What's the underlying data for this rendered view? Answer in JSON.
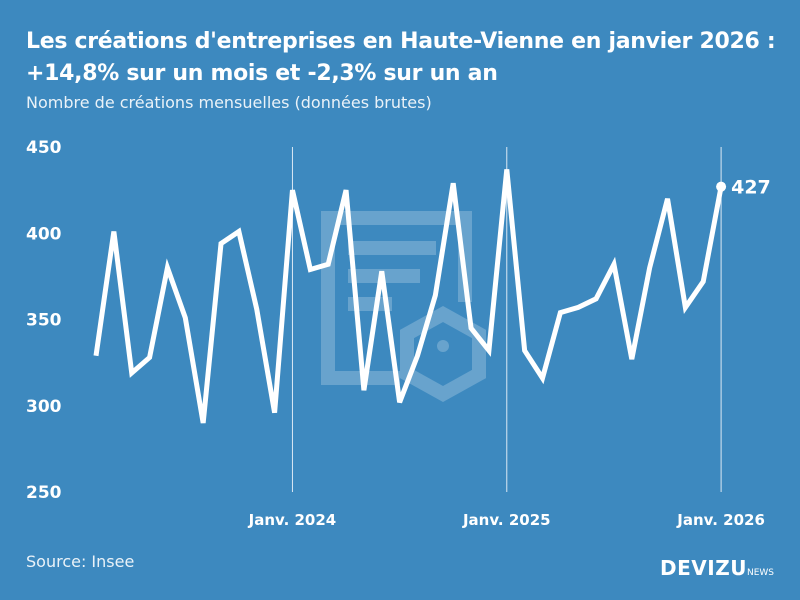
{
  "title": "Les créations d'entreprises en Haute-Vienne en janvier 2026 : +14,8% sur un mois et -2,3% sur un an",
  "subtitle": "Nombre de créations mensuelles (données brutes)",
  "source": "Source: Insee",
  "brand": {
    "name": "DEVIZU",
    "suffix": "NEWS"
  },
  "colors": {
    "background": "#3d89bf",
    "line": "#ffffff"
  },
  "chart_data": {
    "type": "line",
    "ylim": [
      250,
      450
    ],
    "yticks": [
      250,
      300,
      350,
      400,
      450
    ],
    "xtick_labels": [
      "Janv. 2024",
      "Janv. 2025",
      "Janv. 2026"
    ],
    "grid": false,
    "x": [
      "2023-02",
      "2023-03",
      "2023-04",
      "2023-05",
      "2023-06",
      "2023-07",
      "2023-08",
      "2023-09",
      "2023-10",
      "2023-11",
      "2023-12",
      "2024-01",
      "2024-02",
      "2024-03",
      "2024-04",
      "2024-05",
      "2024-06",
      "2024-07",
      "2024-08",
      "2024-09",
      "2024-10",
      "2024-11",
      "2024-12",
      "2025-01",
      "2025-02",
      "2025-03",
      "2025-04",
      "2025-05",
      "2025-06",
      "2025-07",
      "2025-08",
      "2025-09",
      "2025-10",
      "2025-11",
      "2025-12",
      "2026-01"
    ],
    "values": [
      329,
      401,
      319,
      328,
      380,
      351,
      290,
      394,
      401,
      356,
      296,
      425,
      379,
      382,
      425,
      309,
      378,
      302,
      329,
      364,
      429,
      345,
      332,
      437,
      332,
      316,
      354,
      357,
      362,
      382,
      327,
      380,
      420,
      357,
      372,
      427
    ],
    "last_label": "427"
  }
}
